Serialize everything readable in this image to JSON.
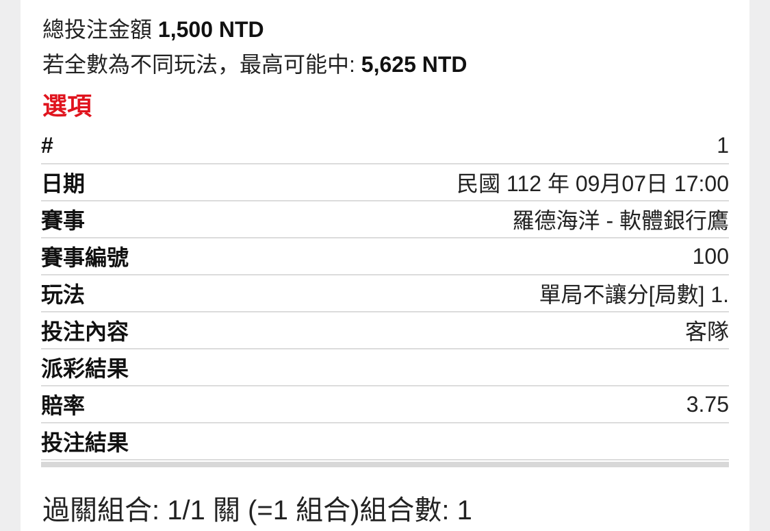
{
  "summary": [
    {
      "label": "總投注金額",
      "value": "1,500 NTD"
    },
    {
      "label": "若全數為不同玩法，最高可能中:",
      "value": "5,625 NTD"
    }
  ],
  "section_title": "選項",
  "table": {
    "rows": [
      {
        "label": "#",
        "value": "1"
      },
      {
        "label": "日期",
        "value": "民國 112 年 09月07日 17:00"
      },
      {
        "label": "賽事",
        "value": "羅德海洋 - 軟體銀行鷹"
      },
      {
        "label": "賽事編號",
        "value": "100"
      },
      {
        "label": "玩法",
        "value": "單局不讓分[局數] 1."
      },
      {
        "label": "投注內容",
        "value": "客隊"
      },
      {
        "label": "派彩結果"
      },
      {
        "label": "賠率",
        "value": "3.75"
      },
      {
        "label": "投注結果"
      }
    ]
  },
  "footer": "過關組合: 1/1 關 (=1 組合)組合數: 1"
}
